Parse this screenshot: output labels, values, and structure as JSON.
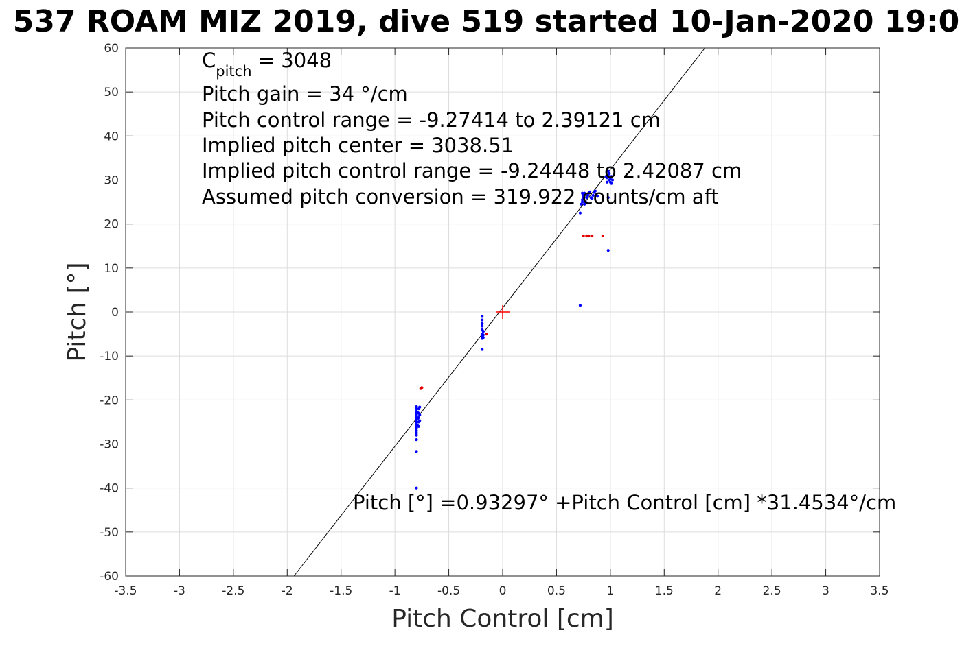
{
  "chart_data": {
    "type": "scatter",
    "title": "537 ROAM MIZ 2019, dive 519 started 10-Jan-2020 19:0",
    "xlabel": "Pitch Control [cm]",
    "ylabel": "Pitch [°]",
    "xlim": [
      -3.5,
      3.5
    ],
    "ylim": [
      -60,
      60
    ],
    "x_ticks": [
      -3.5,
      -3,
      -2.5,
      -2,
      -1.5,
      -1,
      -0.5,
      0,
      0.5,
      1,
      1.5,
      2,
      2.5,
      3,
      3.5
    ],
    "y_ticks": [
      -60,
      -50,
      -40,
      -30,
      -20,
      -10,
      0,
      10,
      20,
      30,
      40,
      50,
      60
    ],
    "grid": true,
    "annotations": {
      "c_pitch_main": "C",
      "c_pitch_sub": "pitch",
      "c_pitch_value": " = 3048",
      "pitch_gain": "Pitch gain = 34 °/cm",
      "pitch_control_range": "Pitch control range = -9.27414 to 2.39121 cm",
      "implied_center": "Implied pitch center = 3038.51",
      "implied_range": "Implied pitch control range = -9.24448 to 2.42087 cm",
      "assumed_conversion": "Assumed pitch conversion = 319.922 counts/cm aft",
      "fit_equation": "Pitch [°] =0.93297° +Pitch Control [cm] *31.4534°/cm"
    },
    "fit_line": {
      "intercept": 0.93297,
      "slope": 31.4534,
      "color": "#000000"
    },
    "center_marker": {
      "x": 0,
      "y": 0,
      "color": "#ff0000"
    },
    "series": [
      {
        "color": "#0000ff",
        "points": [
          [
            -0.8,
            -21.5
          ],
          [
            -0.8,
            -22.0
          ],
          [
            -0.8,
            -22.6
          ],
          [
            -0.8,
            -23.0
          ],
          [
            -0.8,
            -23.5
          ],
          [
            -0.8,
            -24.0
          ],
          [
            -0.8,
            -24.5
          ],
          [
            -0.8,
            -25.0
          ],
          [
            -0.8,
            -25.5
          ],
          [
            -0.8,
            -26.0
          ],
          [
            -0.8,
            -26.5
          ],
          [
            -0.8,
            -27.0
          ],
          [
            -0.8,
            -27.5
          ],
          [
            -0.8,
            -28.0
          ],
          [
            -0.78,
            -22.0
          ],
          [
            -0.78,
            -23.0
          ],
          [
            -0.78,
            -24.0
          ],
          [
            -0.78,
            -25.0
          ],
          [
            -0.78,
            -26.0
          ],
          [
            -0.77,
            -21.6
          ],
          [
            -0.77,
            -23.4
          ],
          [
            -0.77,
            -24.7
          ],
          [
            -0.79,
            -25.8
          ],
          [
            -0.79,
            -24.3
          ],
          [
            -0.79,
            -22.8
          ],
          [
            -0.8,
            -29.0
          ],
          [
            -0.8,
            -31.7
          ],
          [
            -0.8,
            -40.0
          ],
          [
            -0.19,
            -1.0
          ],
          [
            -0.19,
            -1.8
          ],
          [
            -0.19,
            -2.6
          ],
          [
            -0.19,
            -3.2
          ],
          [
            -0.19,
            -4.0
          ],
          [
            -0.19,
            -5.0
          ],
          [
            -0.19,
            -5.5
          ],
          [
            -0.19,
            -6.0
          ],
          [
            -0.18,
            -5.2
          ],
          [
            -0.18,
            -4.4
          ],
          [
            -0.18,
            -5.8
          ],
          [
            -0.19,
            -8.5
          ],
          [
            0.72,
            22.5
          ],
          [
            0.73,
            24.5
          ],
          [
            0.74,
            25.0
          ],
          [
            0.74,
            25.5
          ],
          [
            0.75,
            26.0
          ],
          [
            0.75,
            26.5
          ],
          [
            0.76,
            27.0
          ],
          [
            0.77,
            25.0
          ],
          [
            0.78,
            26.0
          ],
          [
            0.79,
            26.5
          ],
          [
            0.8,
            27.0
          ],
          [
            0.81,
            27.3
          ],
          [
            0.82,
            26.0
          ],
          [
            0.83,
            25.8
          ],
          [
            0.84,
            26.5
          ],
          [
            0.85,
            27.2
          ],
          [
            0.86,
            27.5
          ],
          [
            0.87,
            26.8
          ],
          [
            0.88,
            26.3
          ],
          [
            0.76,
            24.5
          ],
          [
            0.74,
            27.0
          ],
          [
            0.72,
            1.5
          ],
          [
            0.97,
            29.5
          ],
          [
            0.97,
            30.5
          ],
          [
            0.98,
            31.0
          ],
          [
            0.99,
            31.5
          ],
          [
            0.99,
            30.0
          ],
          [
            1.0,
            29.5
          ],
          [
            1.0,
            30.2
          ],
          [
            1.01,
            30.8
          ],
          [
            1.01,
            29.2
          ],
          [
            0.98,
            32.0
          ],
          [
            1.02,
            30.0
          ],
          [
            0.96,
            30.8
          ],
          [
            0.98,
            26.0
          ],
          [
            0.98,
            14.0
          ]
        ]
      },
      {
        "color": "#e00000",
        "points": [
          [
            -0.76,
            -17.4
          ],
          [
            -0.75,
            -17.2
          ],
          [
            -0.15,
            -5.0
          ],
          [
            0.75,
            17.3
          ],
          [
            0.78,
            17.3
          ],
          [
            0.8,
            17.3
          ],
          [
            0.83,
            17.3
          ],
          [
            0.93,
            17.3
          ]
        ]
      }
    ]
  }
}
